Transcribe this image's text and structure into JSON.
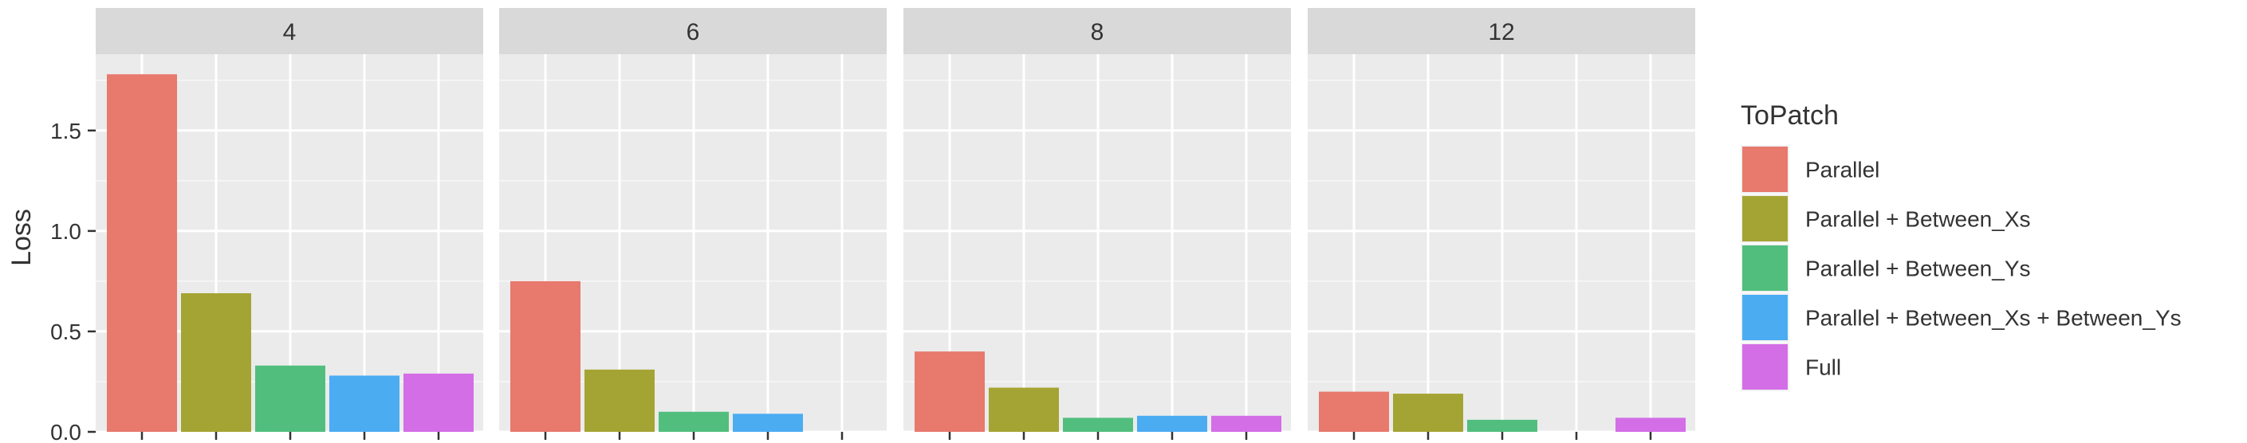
{
  "chart_data": {
    "type": "bar",
    "ylabel": "Loss",
    "ylim": [
      0,
      1.88
    ],
    "yticks": [
      "0.0",
      "0.5",
      "1.0",
      "1.5"
    ],
    "ytick_values": [
      0,
      0.5,
      1.0,
      1.5
    ],
    "grid": true,
    "legend_title": "ToPatch",
    "legend_position": "right",
    "categories": [
      "Parallel",
      "Parallel + Between_Xs",
      "Parallel + Between_Ys",
      "Parallel + Between_Xs + Between_Ys",
      "Full"
    ],
    "colors": [
      "#E7796D",
      "#A4A434",
      "#51BE7E",
      "#4BACF2",
      "#D36EE6"
    ],
    "facets": [
      {
        "label": "4",
        "values": [
          1.78,
          0.69,
          0.33,
          0.28,
          0.29
        ]
      },
      {
        "label": "6",
        "values": [
          0.75,
          0.31,
          0.1,
          0.09,
          null
        ]
      },
      {
        "label": "8",
        "values": [
          0.4,
          0.22,
          0.07,
          0.08,
          0.08
        ]
      },
      {
        "label": "12",
        "values": [
          0.2,
          0.19,
          0.06,
          null,
          0.07
        ]
      }
    ]
  }
}
